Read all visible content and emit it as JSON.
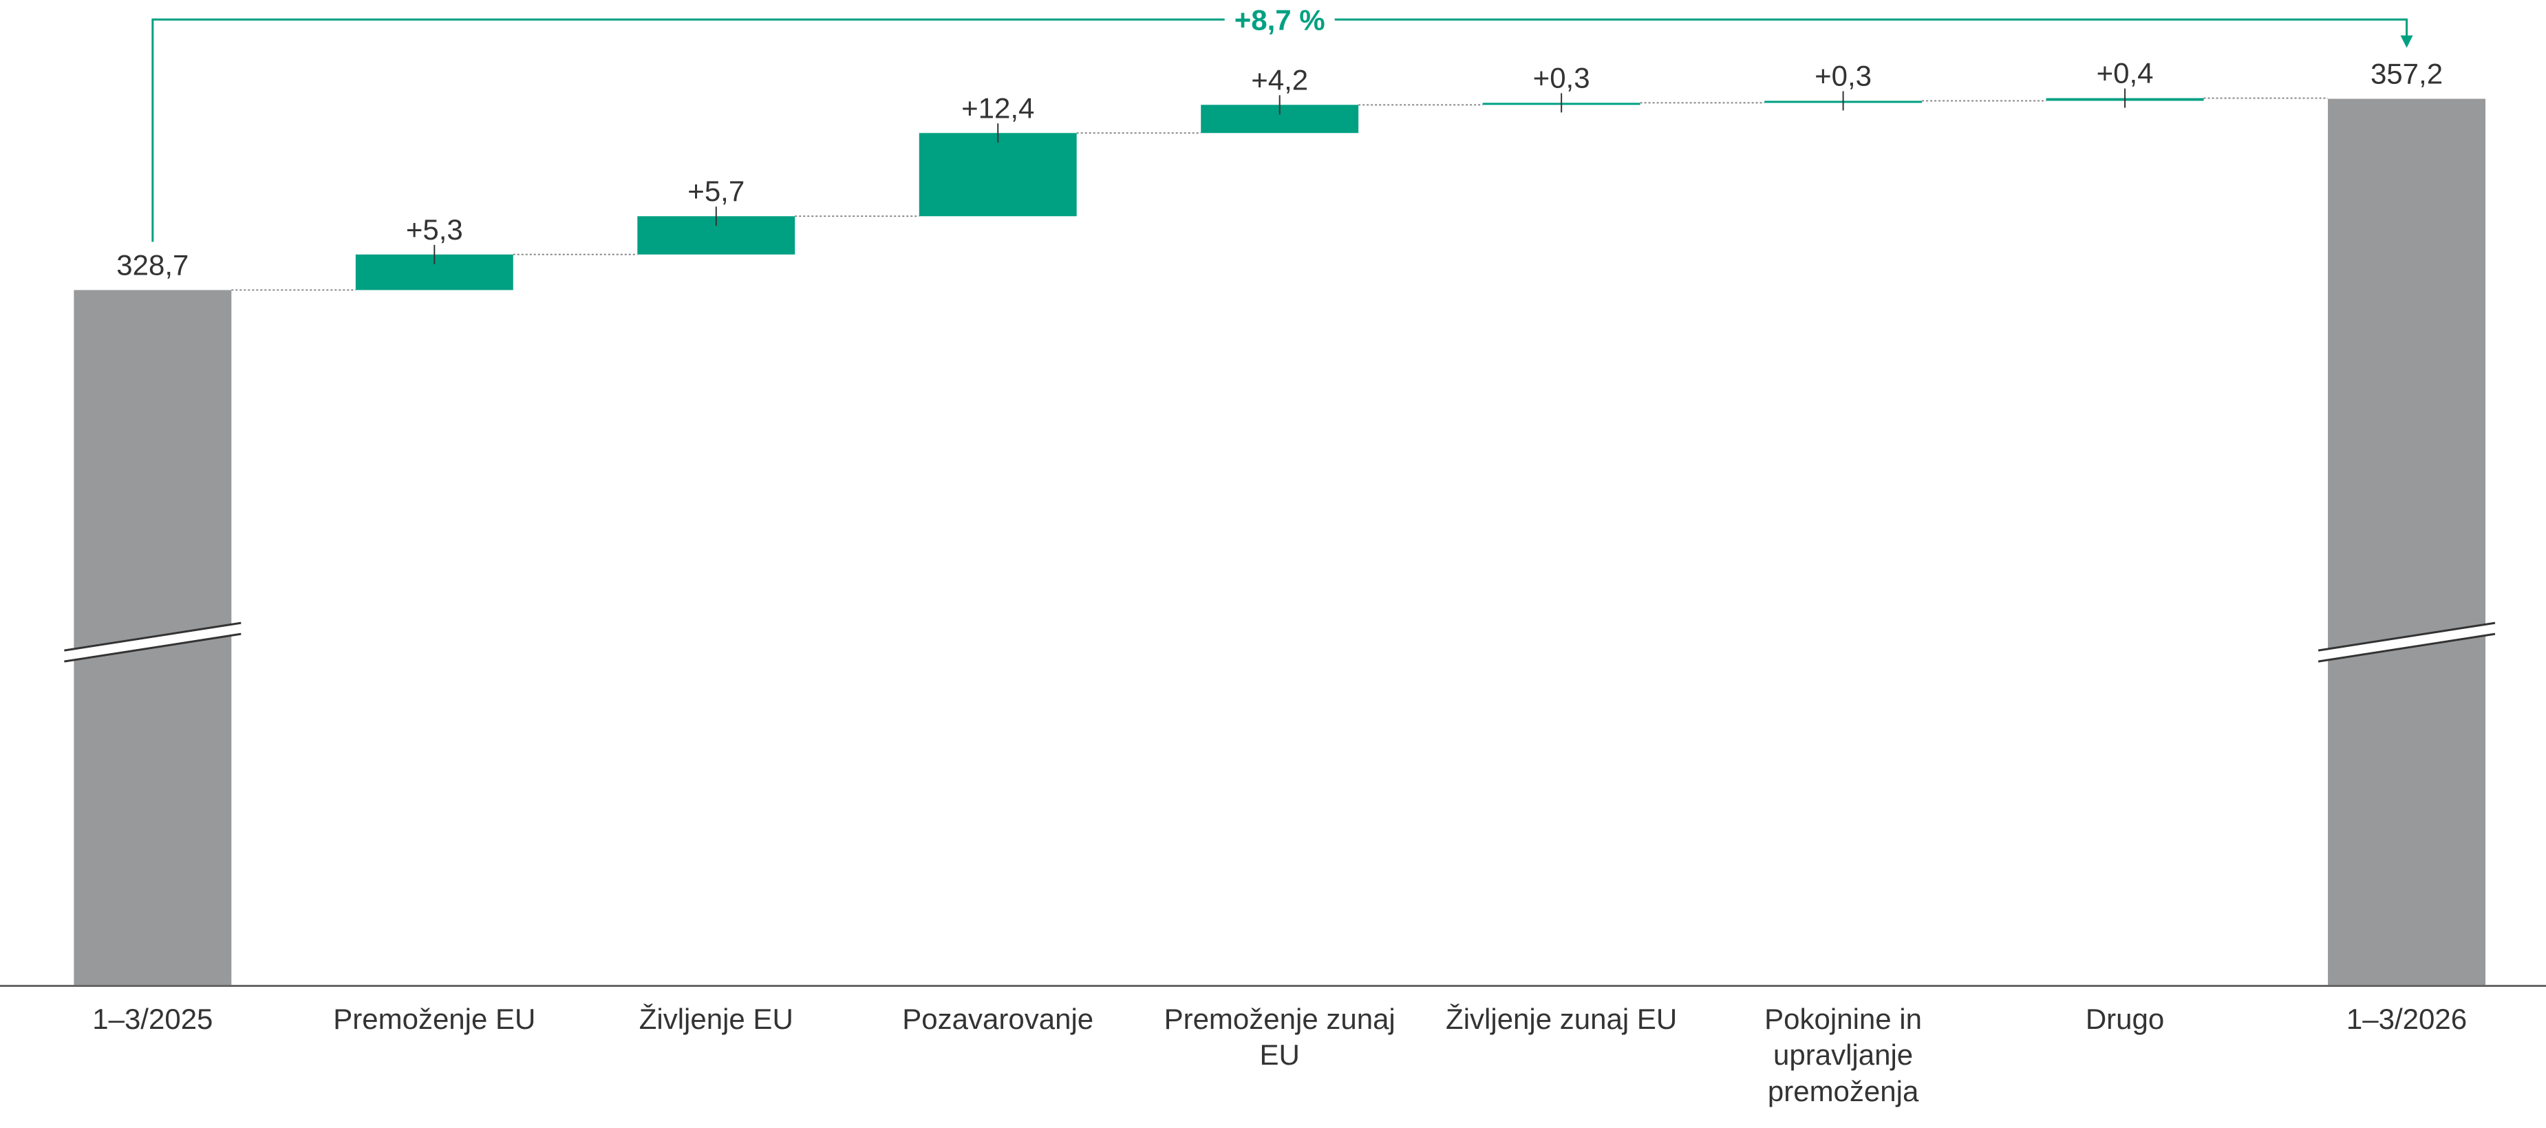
{
  "chart_data": {
    "type": "waterfall",
    "categories": [
      "1–3/2025",
      "Premoženje EU",
      "Življenje EU",
      "Pozavarovanje",
      "Premoženje zunaj EU",
      "Življenje zunaj EU",
      "Pokojnine in upravljanje premoženja",
      "Drugo",
      "1–3/2026"
    ],
    "values": [
      328.7,
      5.3,
      5.7,
      12.4,
      4.2,
      0.3,
      0.3,
      0.4,
      357.2
    ],
    "value_labels": [
      "328,7",
      "+5,3",
      "+5,7",
      "+12,4",
      "+4,2",
      "+0,3",
      "+0,3",
      "+0,4",
      "357,2"
    ],
    "colors": [
      "#97999b",
      "#00a082",
      "#00a082",
      "#00a082",
      "#00a082",
      "#00a082",
      "#00a082",
      "#00a082",
      "#97999b"
    ],
    "annotation": "+8,7 %",
    "annotation_color": "#00a082",
    "ylim": [
      225,
      362
    ]
  }
}
